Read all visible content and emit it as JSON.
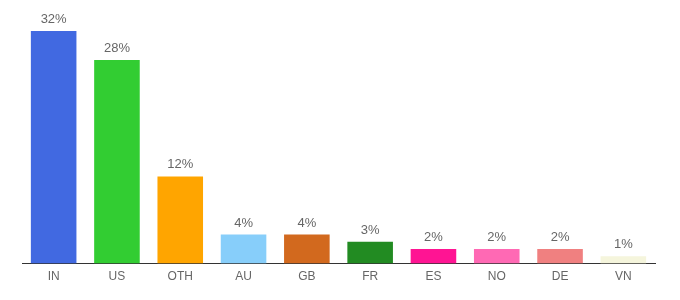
{
  "chart_data": {
    "type": "bar",
    "categories": [
      "IN",
      "US",
      "OTH",
      "AU",
      "GB",
      "FR",
      "ES",
      "NO",
      "DE",
      "VN"
    ],
    "values": [
      32,
      28,
      12,
      4,
      4,
      3,
      2,
      2,
      2,
      1
    ],
    "value_labels": [
      "32%",
      "28%",
      "12%",
      "4%",
      "4%",
      "3%",
      "2%",
      "2%",
      "2%",
      "1%"
    ],
    "colors": [
      "#4169e1",
      "#32cd32",
      "#ffa500",
      "#87cefa",
      "#d2691e",
      "#228b22",
      "#ff1493",
      "#ff69b4",
      "#f08080",
      "#f5f5dc"
    ],
    "ylim": [
      0,
      32
    ],
    "grid": false,
    "data_labels": true,
    "tick_labels": "x"
  }
}
